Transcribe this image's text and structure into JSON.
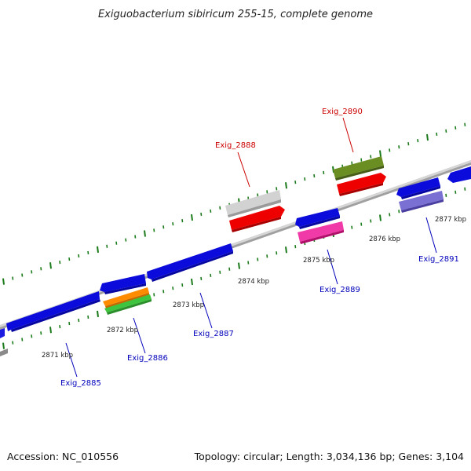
{
  "title": "Exiguobacterium sibiricum 255-15, complete genome",
  "footer": {
    "accession": "Accession: NC_010556",
    "summary": "Topology: circular; Length: 3,034,136 bp; Genes: 3,104"
  },
  "colors": {
    "backbone": "#8c8c8c",
    "tick": "#1a7a1a",
    "cds_blue": "#0b0bdc",
    "gene_red": "#e60000",
    "label_red": "#cc0000",
    "label_blue": "#0000bb",
    "olive": "#6b8e23",
    "gray_gene": "#c8c8c8",
    "magenta": "#ee1a9a",
    "lavender": "#7a6fd2",
    "orange": "#ff8c00",
    "green": "#33bb33"
  },
  "ruler_labels": [
    "2871 kbp",
    "2872 kbp",
    "2873 kbp",
    "2874 kbp",
    "2875 kbp",
    "2876 kbp",
    "2877 kbp"
  ],
  "gene_labels": {
    "g2885": "Exig_2885",
    "g2886": "Exig_2886",
    "g2887": "Exig_2887",
    "g2888": "Exig_2888",
    "g2889": "Exig_2889",
    "g2890": "Exig_2890",
    "g2891": "Exig_2891"
  }
}
